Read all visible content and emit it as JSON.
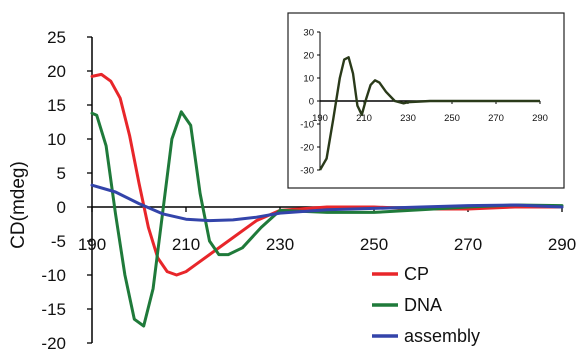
{
  "chart_data": [
    {
      "id": "main",
      "type": "line",
      "ylabel": "CD(mdeg)",
      "xlim": [
        190,
        290
      ],
      "ylim": [
        -20,
        25
      ],
      "x_ticks": [
        190,
        210,
        230,
        250,
        270,
        290
      ],
      "y_ticks": [
        25,
        20,
        15,
        10,
        5,
        0,
        -5,
        -10,
        -15,
        -20
      ],
      "grid": false,
      "legend_position": "bottom-right",
      "series": [
        {
          "name": "CP",
          "color": "#e8262a",
          "x": [
            190,
            192,
            194,
            196,
            198,
            200,
            202,
            204,
            206,
            208,
            210,
            212,
            215,
            220,
            225,
            230,
            240,
            250,
            260,
            270,
            280,
            290
          ],
          "y": [
            19.2,
            19.5,
            18.5,
            16,
            10.5,
            3.5,
            -3,
            -7.5,
            -9.5,
            -10,
            -9.5,
            -8.5,
            -7,
            -4.5,
            -2,
            -0.5,
            0,
            0,
            -0.3,
            -0.3,
            0,
            0
          ]
        },
        {
          "name": "DNA",
          "color": "#1f7a3a",
          "x": [
            190,
            191,
            193,
            195,
            197,
            199,
            201,
            203,
            205,
            207,
            209,
            211,
            213,
            215,
            217,
            219,
            222,
            226,
            230,
            240,
            250,
            260,
            270,
            280,
            290
          ],
          "y": [
            13.8,
            13.5,
            9,
            -1,
            -10,
            -16.5,
            -17.5,
            -12,
            -1,
            10,
            14,
            12,
            2,
            -5,
            -7,
            -7,
            -6,
            -3,
            -0.5,
            -0.8,
            -0.8,
            -0.4,
            0,
            0.3,
            0.2
          ]
        },
        {
          "name": "assembly",
          "color": "#3344aa",
          "x": [
            190,
            195,
            200,
            205,
            210,
            215,
            220,
            225,
            230,
            240,
            250,
            260,
            270,
            280,
            290
          ],
          "y": [
            3.2,
            2.2,
            0.5,
            -1,
            -1.8,
            -2,
            -1.9,
            -1.5,
            -0.9,
            -0.4,
            -0.2,
            0,
            0.2,
            0.3,
            0
          ]
        }
      ]
    },
    {
      "id": "inset",
      "type": "line",
      "xlim": [
        190,
        290
      ],
      "ylim": [
        -30,
        30
      ],
      "x_ticks": [
        190,
        210,
        230,
        250,
        270,
        290
      ],
      "y_ticks": [
        30,
        20,
        10,
        0,
        -10,
        -20,
        -30
      ],
      "grid": false,
      "series": [
        {
          "color": "#2a3a1a",
          "x": [
            190,
            193,
            196,
            199,
            201,
            203,
            205,
            207,
            209,
            211,
            213,
            215,
            217,
            220,
            224,
            228,
            230,
            240,
            250,
            260,
            270,
            280,
            290
          ],
          "y": [
            -30,
            -25,
            -8,
            10,
            18,
            19,
            12,
            -2,
            -6,
            1,
            7,
            9,
            8,
            4,
            0,
            -1,
            -0.5,
            0,
            0,
            0,
            0,
            0,
            0
          ]
        }
      ]
    }
  ]
}
